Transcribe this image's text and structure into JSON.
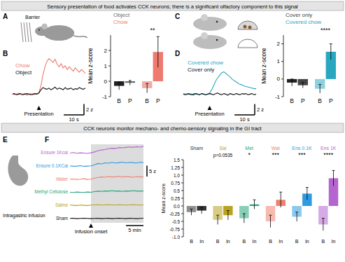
{
  "figure": {
    "headers": [
      "Sensory presentation of food activates CCK neurons; there is a significant olfactory component to this signal",
      "CCK neurons monitor mechano- and chemo-sensory signaling in the GI tract"
    ],
    "panel_labels": [
      "A",
      "B",
      "C",
      "D",
      "E",
      "F"
    ],
    "texts": {
      "barrier": "Barrier",
      "infusion": "Intragastric infusion"
    }
  },
  "chart_data": [
    {
      "type": "line",
      "x": [
        -13,
        -12,
        -11,
        -10,
        -9,
        -8,
        -7,
        -6,
        -5,
        -4,
        -3,
        -2,
        -1,
        0,
        1,
        2,
        3,
        4,
        5,
        6,
        7,
        8,
        9,
        10,
        11,
        12,
        13,
        14,
        15,
        16,
        17,
        18,
        19,
        20,
        21,
        22,
        23
      ],
      "xlim": [
        -13,
        23
      ],
      "ylim": [
        -2,
        8
      ],
      "tick_labels": false,
      "series": [
        {
          "name": "Chow",
          "color": "#ee7a70",
          "values": [
            0.1,
            -0.1,
            0.0,
            0.2,
            -0.1,
            0.0,
            0.1,
            -0.2,
            0.0,
            0.1,
            -0.1,
            0.0,
            0.1,
            0.3,
            1.5,
            3.5,
            5.0,
            6.0,
            6.5,
            6.2,
            5.8,
            6.4,
            5.5,
            5.0,
            5.6,
            4.8,
            5.2,
            4.5,
            5.0,
            4.6,
            4.2,
            4.8,
            4.4,
            4.0,
            4.5,
            4.2,
            3.8
          ]
        },
        {
          "name": "Object",
          "color": "#111111",
          "values": [
            0.0,
            0.1,
            -0.1,
            0.0,
            0.1,
            -0.1,
            0.0,
            0.1,
            0.0,
            -0.1,
            0.0,
            0.1,
            0.0,
            0.2,
            0.8,
            1.2,
            1.0,
            0.9,
            1.1,
            0.8,
            1.0,
            1.3,
            0.9,
            1.1,
            1.0,
            0.8,
            1.2,
            0.9,
            1.0,
            1.1,
            0.8,
            1.0,
            0.9,
            1.2,
            1.0,
            0.9,
            1.1
          ]
        }
      ],
      "annotations": [
        {
          "x": 0,
          "text": "Presentation"
        }
      ],
      "scale_bars": {
        "x": 10,
        "x_label": "10 s",
        "y": 2,
        "y_label": "2 z"
      }
    },
    {
      "type": "bar",
      "y_label": "Mean z-score",
      "categories": [
        "B",
        "P"
      ],
      "series": [
        {
          "name": "Object",
          "colors": [
            "#222222",
            "#6b6b6b"
          ],
          "values": [
            -0.3,
            -0.1
          ],
          "errors": [
            0.25,
            0.15
          ]
        },
        {
          "name": "Chow",
          "colors": [
            "#f3aaa4",
            "#ee7a70"
          ],
          "values": [
            -0.45,
            1.9
          ],
          "errors": [
            0.3,
            1.0
          ],
          "significance": "**"
        }
      ],
      "ylim": [
        -1,
        3
      ],
      "yticks": [
        -1,
        0,
        1,
        2
      ],
      "legend": "top-left"
    },
    {
      "type": "line",
      "x": [
        -13,
        -12,
        -11,
        -10,
        -9,
        -8,
        -7,
        -6,
        -5,
        -4,
        -3,
        -2,
        -1,
        0,
        1,
        2,
        3,
        4,
        5,
        6,
        7,
        8,
        9,
        10,
        11,
        12,
        13,
        14,
        15,
        16,
        17,
        18,
        19,
        20,
        21,
        22,
        23
      ],
      "xlim": [
        -13,
        23
      ],
      "ylim": [
        -2,
        8
      ],
      "tick_labels": false,
      "series": [
        {
          "name": "Covered chow",
          "color": "#2aa7c0",
          "values": [
            0.1,
            0.0,
            -0.1,
            0.1,
            0.0,
            -0.2,
            0.1,
            0.0,
            -0.1,
            0.1,
            0.0,
            -0.1,
            0.0,
            0.2,
            0.8,
            1.6,
            2.4,
            3.0,
            3.5,
            3.9,
            4.1,
            3.8,
            3.5,
            3.2,
            2.8,
            2.5,
            2.3,
            2.0,
            1.8,
            1.7,
            1.5,
            1.4,
            1.3,
            1.2,
            1.1,
            1.0,
            1.0
          ]
        },
        {
          "name": "Cover only",
          "color": "#111111",
          "values": [
            0.0,
            -0.1,
            0.1,
            0.0,
            -0.1,
            0.0,
            0.1,
            0.0,
            -0.1,
            0.1,
            0.0,
            -0.1,
            0.0,
            0.1,
            0.0,
            -0.1,
            0.1,
            0.2,
            0.0,
            -0.1,
            0.1,
            0.0,
            -0.2,
            0.1,
            0.0,
            -0.1,
            0.1,
            0.0,
            -0.1,
            0.1,
            0.0,
            0.1,
            -0.1,
            0.0,
            0.1,
            -0.1,
            0.0
          ]
        }
      ],
      "annotations": [
        {
          "x": 0,
          "text": "Presentation"
        }
      ],
      "scale_bars": {
        "x": 10,
        "x_label": "10 s",
        "y": 2,
        "y_label": "2 z"
      }
    },
    {
      "type": "bar",
      "y_label": "Mean z-score",
      "categories": [
        "B",
        "P"
      ],
      "series": [
        {
          "name": "Cover only",
          "colors": [
            "#222222",
            "#444444"
          ],
          "values": [
            -0.2,
            -0.35
          ],
          "errors": [
            0.2,
            0.15
          ]
        },
        {
          "name": "Covered chow",
          "colors": [
            "#8fd0de",
            "#2aa7c0"
          ],
          "values": [
            -0.55,
            1.55
          ],
          "errors": [
            0.25,
            0.45
          ],
          "significance": "****"
        }
      ],
      "ylim": [
        -1,
        2.5
      ],
      "yticks": [
        -1,
        0,
        1,
        2
      ],
      "legend": "top-left"
    },
    {
      "type": "line",
      "x": [
        -6,
        -5,
        -4,
        -3,
        -2,
        -1,
        0,
        1,
        2,
        3,
        4,
        5,
        6,
        7,
        8,
        9,
        10,
        11,
        12,
        13,
        14,
        15
      ],
      "xlim": [
        -6,
        15
      ],
      "ylim": [
        -2,
        4
      ],
      "tick_labels": false,
      "series": [
        {
          "name": "Ensure 1Kcal",
          "color": "#b565d0",
          "values": [
            0.0,
            0.2,
            -0.1,
            0.1,
            0.0,
            -0.2,
            0.1,
            0.5,
            1.0,
            1.4,
            1.6,
            2.0,
            2.2,
            2.1,
            2.5,
            2.4,
            2.6,
            2.8,
            2.6,
            2.9,
            2.7,
            3.0
          ]
        },
        {
          "name": "Ensure 0.1KCal",
          "color": "#2e9be0",
          "values": [
            0.1,
            -0.1,
            0.0,
            0.2,
            -0.1,
            0.0,
            0.1,
            0.6,
            1.2,
            1.0,
            1.5,
            1.3,
            1.7,
            1.4,
            1.6,
            1.8,
            1.5,
            1.7,
            1.6,
            1.4,
            1.8,
            1.6
          ]
        },
        {
          "name": "Water",
          "color": "#f08070",
          "values": [
            0.0,
            0.1,
            -0.1,
            0.0,
            0.2,
            -0.1,
            0.0,
            0.5,
            0.8,
            1.0,
            0.9,
            1.2,
            1.0,
            1.1,
            1.3,
            1.0,
            1.2,
            1.1,
            0.9,
            1.2,
            1.0,
            1.1
          ]
        },
        {
          "name": "Methyl Cellulose",
          "color": "#25a77a",
          "values": [
            0.0,
            -0.1,
            0.1,
            0.0,
            -0.1,
            0.1,
            0.0,
            0.3,
            0.5,
            0.4,
            0.6,
            0.5,
            0.7,
            0.5,
            0.6,
            0.4,
            0.6,
            0.5,
            0.7,
            0.6,
            0.5,
            0.6
          ]
        },
        {
          "name": "Saline",
          "color": "#b8a21f",
          "values": [
            0.1,
            0.0,
            -0.1,
            0.1,
            0.0,
            -0.1,
            0.1,
            0.2,
            0.3,
            0.1,
            0.2,
            0.3,
            0.2,
            0.1,
            0.3,
            0.2,
            0.1,
            0.2,
            0.3,
            0.2,
            0.1,
            0.2
          ]
        },
        {
          "name": "Sham",
          "color": "#111111",
          "values": [
            0.0,
            0.1,
            -0.1,
            0.0,
            0.1,
            0.0,
            -0.1,
            0.0,
            0.1,
            -0.1,
            0.0,
            0.1,
            -0.1,
            0.0,
            0.1,
            0.0,
            -0.1,
            0.1,
            0.0,
            -0.1,
            0.0,
            0.1
          ]
        }
      ],
      "annotations": [
        {
          "x": 0,
          "text": "Infusion onset"
        }
      ],
      "scale_bars": {
        "x": 5,
        "x_label": "5 min",
        "y": 5,
        "y_label": "5 z"
      }
    },
    {
      "type": "bar",
      "y_label": "Mean z-score",
      "categories": [
        "B",
        "In"
      ],
      "series": [
        {
          "name": "Sham",
          "color": "#333333",
          "values": [
            -0.2,
            -0.15
          ],
          "errors": [
            0.1,
            0.1
          ]
        },
        {
          "name": "Sal",
          "color": "#b8a21f",
          "values": [
            -0.45,
            -0.3
          ],
          "errors": [
            0.15,
            0.15
          ],
          "significance": "p=0.0535"
        },
        {
          "name": "Met",
          "color": "#25a77a",
          "values": [
            -0.4,
            0.05
          ],
          "errors": [
            0.15,
            0.15
          ],
          "significance": "*"
        },
        {
          "name": "Wat",
          "color": "#f08070",
          "values": [
            -0.5,
            0.2
          ],
          "errors": [
            0.2,
            0.25
          ],
          "significance": "***"
        },
        {
          "name": "Ens 0.1K",
          "color": "#2e9be0",
          "values": [
            -0.35,
            0.4
          ],
          "errors": [
            0.15,
            0.2
          ],
          "significance": "***"
        },
        {
          "name": "Ens 1K",
          "color": "#b565d0",
          "values": [
            -0.6,
            0.9
          ],
          "errors": [
            0.2,
            0.25
          ],
          "significance": "****"
        }
      ],
      "ylim": [
        -1,
        1.5
      ],
      "yticks": [
        {
          "value": -1,
          "label": "-1.0"
        },
        -0.75,
        -0.5,
        -0.25,
        {
          "value": 0,
          "label": "0.0"
        },
        0.25,
        0.5,
        0.75,
        {
          "value": 1,
          "label": "1.0"
        },
        1.25,
        1.5
      ],
      "legend": "top"
    }
  ]
}
